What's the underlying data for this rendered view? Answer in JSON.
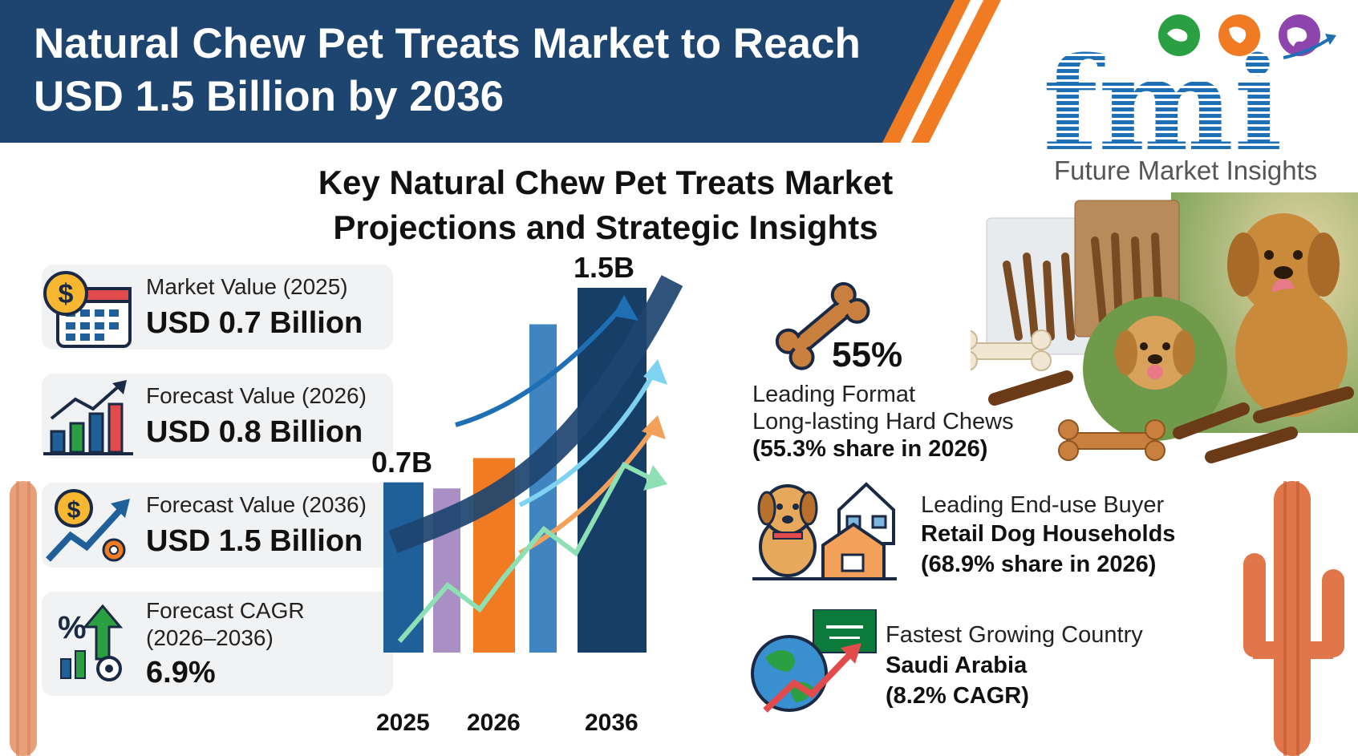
{
  "header": {
    "title": "Natural Chew Pet Treats Market to Reach USD 1.5 Billion by 2036"
  },
  "logo": {
    "letters": "fmi",
    "tagline": "Future Market Insights"
  },
  "subtitle": "Key Natural Chew Pet Treats Market Projections and Strategic Insights",
  "stats": [
    {
      "label": "Market Value (2025)",
      "value": "USD 0.7 Billion",
      "icon": "dollar-calendar-icon"
    },
    {
      "label": "Forecast Value (2026)",
      "value": "USD 0.8 Billion",
      "icon": "bar-growth-icon"
    },
    {
      "label": "Forecast Value (2036)",
      "value": "USD 1.5 Billion",
      "icon": "dollar-growth-gear-icon"
    },
    {
      "label": "Forecast CAGR",
      "label2": "(2026–2036)",
      "value": "6.9%",
      "icon": "percent-gear-icon"
    }
  ],
  "chart_data": {
    "type": "bar",
    "categories": [
      "2025",
      "2026",
      "2036"
    ],
    "values": [
      0.7,
      0.8,
      1.5
    ],
    "value_labels": [
      "0.7B",
      "",
      "1.5B"
    ],
    "colors": [
      "#1f5f9a",
      "#f07b22",
      "#173e67"
    ]
  },
  "insights": {
    "format": {
      "percent": "55%",
      "title": "Leading Format",
      "name": "Long-lasting Hard Chews",
      "share": "(55.3% share in 2026)"
    },
    "buyer": {
      "title": "Leading End-use Buyer",
      "name": "Retail Dog Households",
      "share": "(68.9% share in 2026)"
    },
    "country": {
      "title": "Fastest Growing Country",
      "name": "Saudi Arabia",
      "share": "(8.2% CAGR)"
    }
  },
  "colors": {
    "banner": "#1e4470",
    "accent_orange": "#f07b22",
    "logo_blue": "#1f6fb5"
  }
}
